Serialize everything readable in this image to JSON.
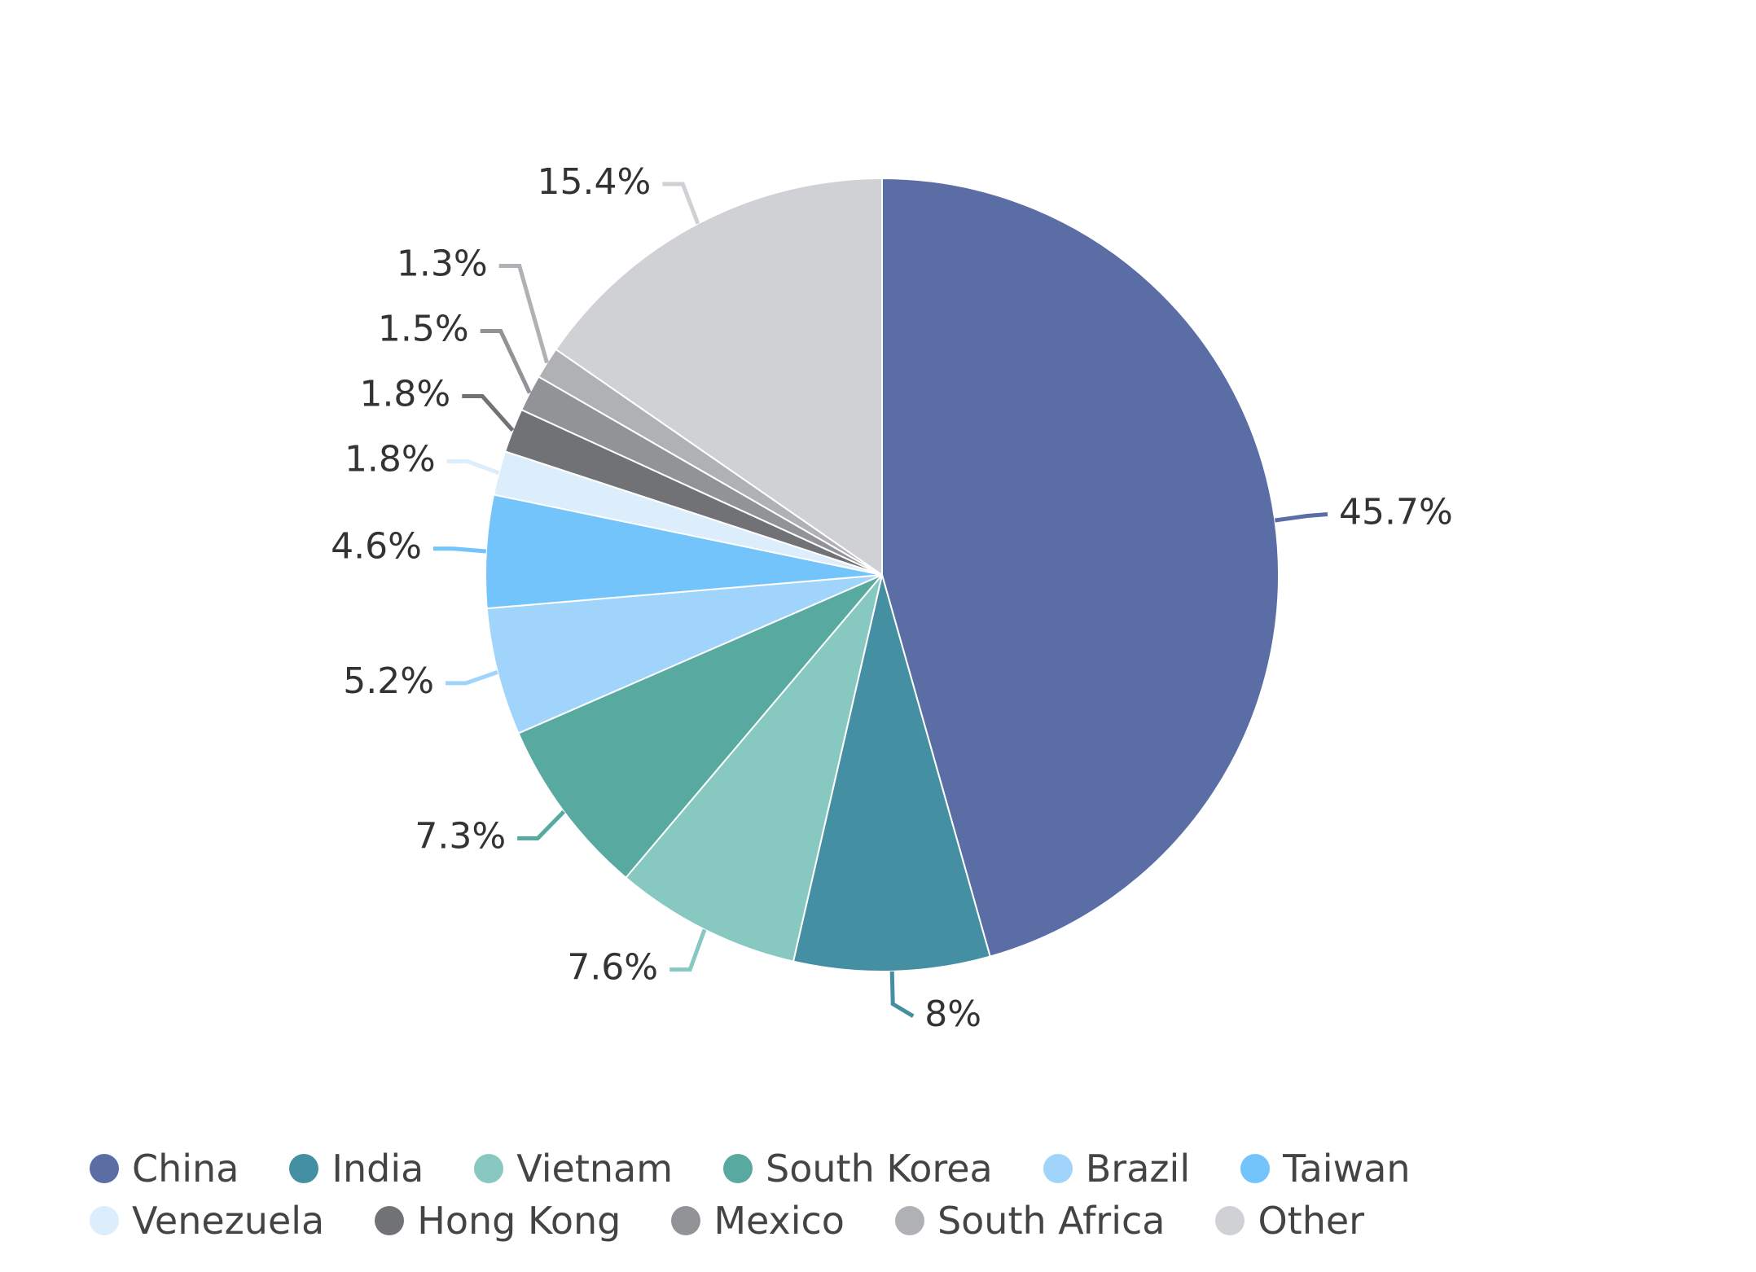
{
  "chart_data": {
    "type": "pie",
    "categories": [
      "China",
      "India",
      "Vietnam",
      "South Korea",
      "Brazil",
      "Taiwan",
      "Venezuela",
      "Hong Kong",
      "Mexico",
      "South Africa",
      "Other"
    ],
    "values": [
      45.7,
      8,
      7.6,
      7.3,
      5.2,
      4.6,
      1.8,
      1.8,
      1.5,
      1.3,
      15.4
    ],
    "value_labels": [
      "45.7%",
      "8%",
      "7.6%",
      "7.3%",
      "5.2%",
      "4.6%",
      "1.8%",
      "1.8%",
      "1.5%",
      "1.3%",
      "15.4%"
    ],
    "colors": [
      "#5a6ea5",
      "#458fa3",
      "#87c9c1",
      "#58a9a0",
      "#a0d4fb",
      "#74c4fc",
      "#dceefb",
      "#717276",
      "#929396",
      "#b0b1b4",
      "#d0d1d5"
    ],
    "legend": "bottom"
  }
}
